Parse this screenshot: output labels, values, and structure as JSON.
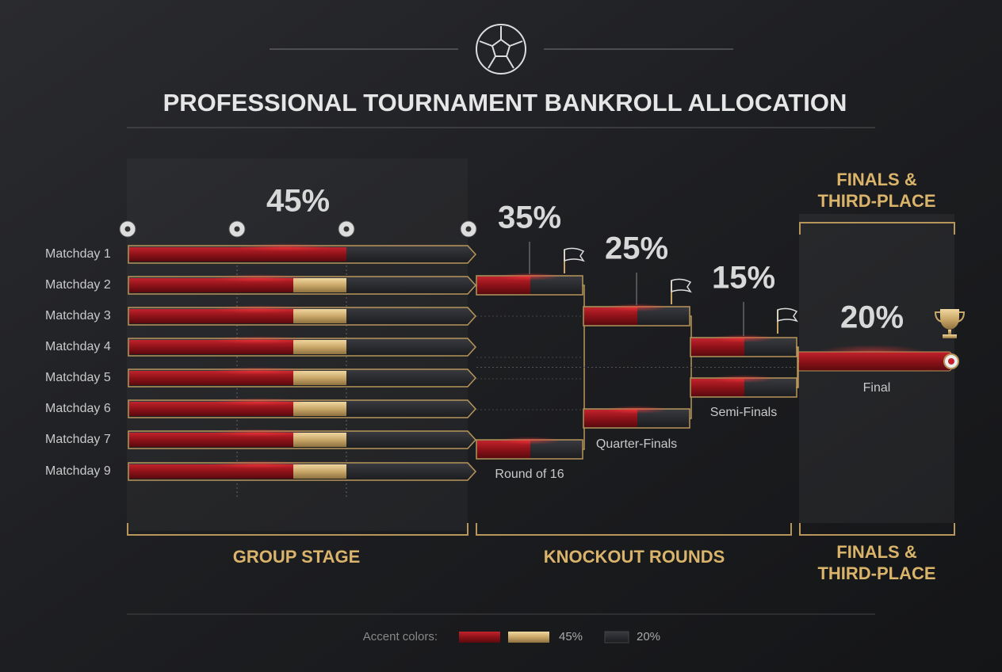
{
  "header": {
    "title": "PROFESSIONAL TOURNAMENT BANKROLL ALLOCATION"
  },
  "group_stage": {
    "label": "GROUP STAGE",
    "percent": "45%",
    "matchdays": [
      "Matchday 1",
      "Matchday 2",
      "Matchday 3",
      "Matchday 4",
      "Matchday 5",
      "Matchday 6",
      "Matchday 7",
      "Matchday 9"
    ]
  },
  "knockout": {
    "label": "KNOCKOUT ROUNDS",
    "rounds": [
      {
        "name": "Round of 16",
        "percent": "35%"
      },
      {
        "name": "Quarter-Finals",
        "percent": "25%"
      },
      {
        "name": "Semi-Finals",
        "percent": "15%"
      }
    ]
  },
  "finals": {
    "heading": [
      "FINALS &",
      "THIRD-PLACE"
    ],
    "percent": "20%",
    "round": "Final"
  },
  "legend": {
    "label": "Accent colors:",
    "items": [
      "45%",
      "20%"
    ]
  }
}
